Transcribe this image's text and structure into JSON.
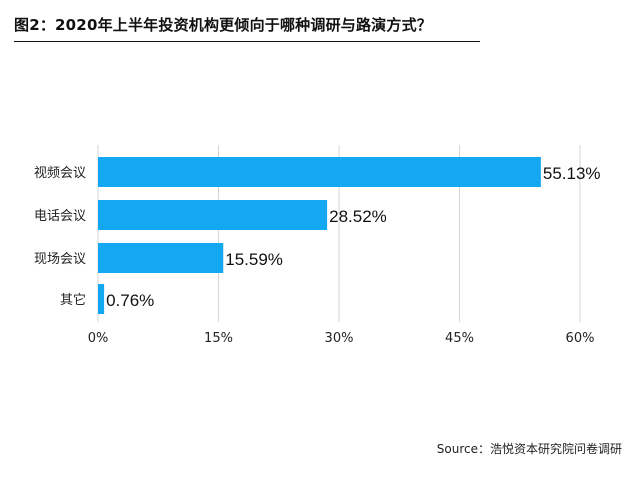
{
  "colors": {
    "bar": "#14a7f2",
    "grid": "#d6d6d6",
    "text": "#222222"
  },
  "chart_data": {
    "type": "bar",
    "orientation": "horizontal",
    "title": "图2：2020年上半年投资机构更倾向于哪种调研与路演方式？",
    "categories": [
      "视频会议",
      "电话会议",
      "现场会议",
      "其它"
    ],
    "values": [
      55.13,
      28.52,
      15.59,
      0.76
    ],
    "value_labels": [
      "55.13%",
      "28.52%",
      "15.59%",
      "0.76%"
    ],
    "xlim": [
      0,
      60
    ],
    "xticks": [
      0,
      15,
      30,
      45,
      60
    ],
    "xtick_labels": [
      "0%",
      "15%",
      "30%",
      "45%",
      "60%"
    ],
    "grid": true,
    "legend": "none",
    "source": "Source：浩悦资本研究院问卷调研"
  }
}
